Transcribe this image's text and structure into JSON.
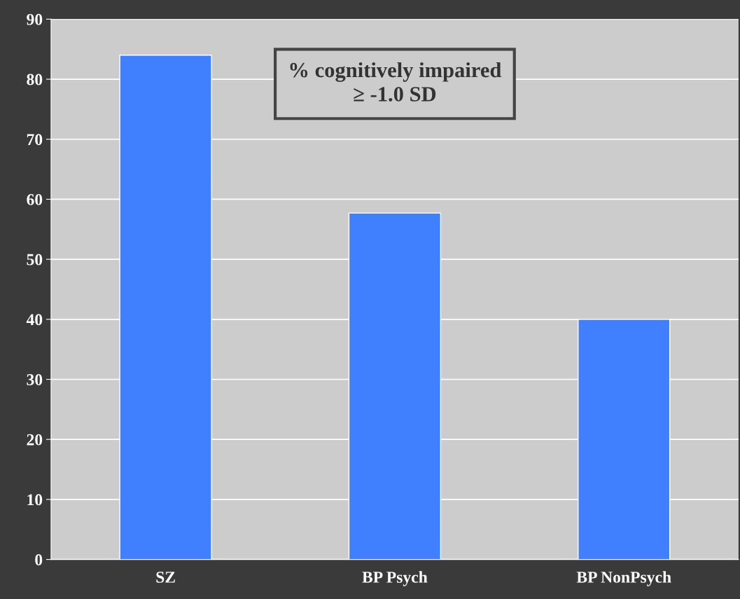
{
  "chart_data": {
    "type": "bar",
    "categories": [
      "SZ",
      "BP Psych",
      "BP NonPsych"
    ],
    "values": [
      84,
      57.7,
      40
    ],
    "color": "#4080ff",
    "ylim": [
      0,
      90
    ],
    "yticks": [
      0,
      10,
      20,
      30,
      40,
      50,
      60,
      70,
      80,
      90
    ],
    "grid": "y",
    "annotations": [
      "% cognitively impaired\n≥ -1.0 SD"
    ]
  }
}
